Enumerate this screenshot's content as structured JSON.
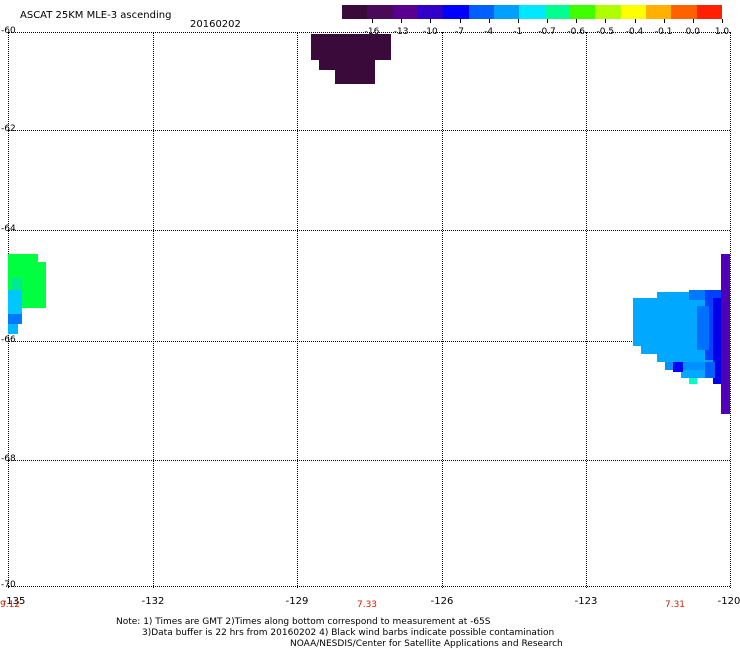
{
  "header": {
    "title": "ASCAT 25KM MLE-3 ascending",
    "date": "20160202"
  },
  "colorbar": {
    "labels": [
      "-16",
      "-13",
      "-10",
      "-7",
      "-4",
      "-1",
      "-0.7",
      "-0.6",
      "-0.5",
      "-0.4",
      "-0.1",
      "0.0",
      "1.0"
    ],
    "colors": [
      "#3a0a3a",
      "#4a0a5a",
      "#5a0090",
      "#3000c8",
      "#0000ff",
      "#0060ff",
      "#00a0ff",
      "#00e8ff",
      "#00ff90",
      "#40ff00",
      "#b0ff00",
      "#ffff00",
      "#ffb000",
      "#ff6000",
      "#ff2000"
    ]
  },
  "map": {
    "lat_labels": [
      "-60",
      "-62",
      "-64",
      "-66",
      "-68",
      "-70"
    ],
    "lon_labels": [
      "-135",
      "-132",
      "-129",
      "-126",
      "-123",
      "-120"
    ],
    "time_labels": [
      "9.12",
      "7.33",
      "7.31"
    ]
  },
  "notes": {
    "line1": "Note: 1) Times are GMT 2)Times along bottom correspond to measurement at -65S",
    "line2": "3)Data buffer is 22 hrs from 20160202 4) Black wind barbs indicate possible contamination",
    "line3": "NOAA/NESDIS/Center for Satellite Applications and Research"
  }
}
